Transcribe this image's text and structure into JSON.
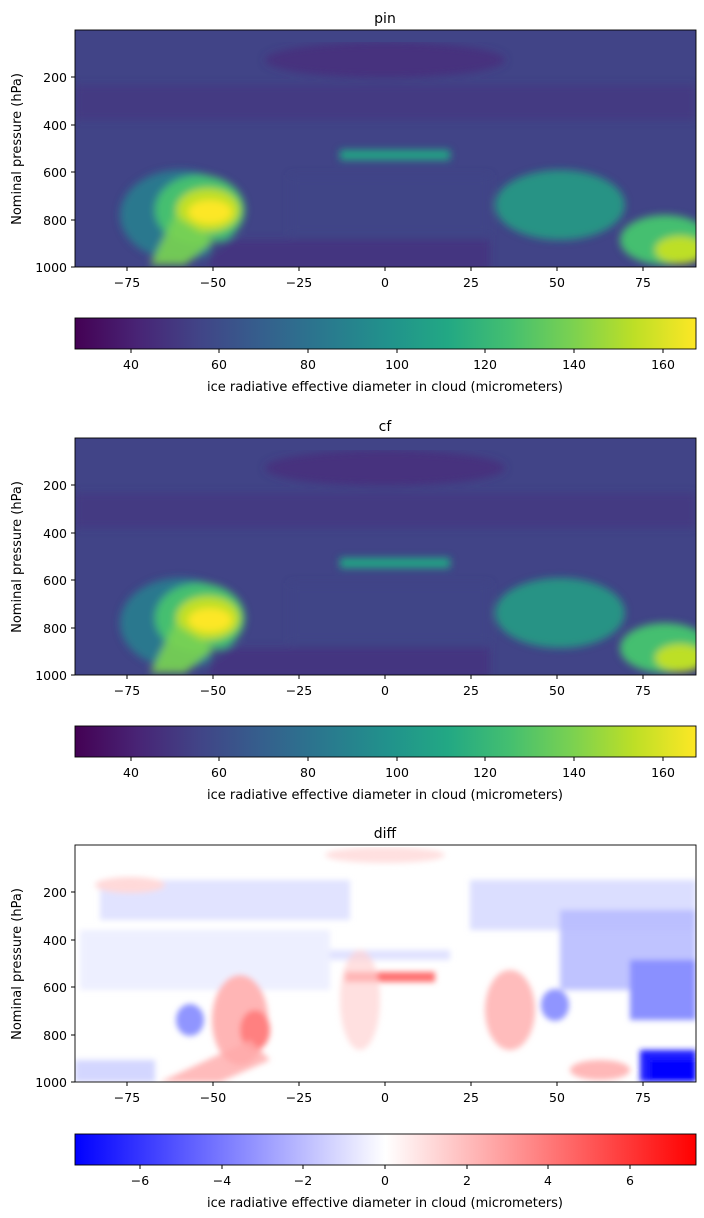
{
  "chart_data": [
    {
      "type": "heatmap",
      "title": "pin",
      "ylabel": "Nominal pressure (hPa)",
      "xlabel": "",
      "xlim": [
        -90,
        90
      ],
      "ylim": [
        1000,
        0
      ],
      "xticks": [
        -75,
        -50,
        -25,
        0,
        25,
        50,
        75
      ],
      "xtick_labels": [
        "−75",
        "−50",
        "−25",
        "0",
        "25",
        "50",
        "75"
      ],
      "yticks": [
        200,
        400,
        600,
        800,
        1000
      ],
      "ytick_labels": [
        "200",
        "400",
        "600",
        "800",
        "1000"
      ],
      "colormap": "viridis",
      "colorbar": {
        "label": "ice radiative effective diameter in cloud (micrometers)",
        "range": [
          27,
          167
        ],
        "ticks": [
          40,
          60,
          80,
          100,
          120,
          140,
          160
        ],
        "tick_labels": [
          "40",
          "60",
          "80",
          "100",
          "120",
          "140",
          "160"
        ],
        "orientation": "horizontal"
      },
      "grid": false
    },
    {
      "type": "heatmap",
      "title": "cf",
      "ylabel": "Nominal pressure (hPa)",
      "xlabel": "",
      "xlim": [
        -90,
        90
      ],
      "ylim": [
        1000,
        0
      ],
      "xticks": [
        -75,
        -50,
        -25,
        0,
        25,
        50,
        75
      ],
      "xtick_labels": [
        "−75",
        "−50",
        "−25",
        "0",
        "25",
        "50",
        "75"
      ],
      "yticks": [
        200,
        400,
        600,
        800,
        1000
      ],
      "ytick_labels": [
        "200",
        "400",
        "600",
        "800",
        "1000"
      ],
      "colormap": "viridis",
      "colorbar": {
        "label": "ice radiative effective diameter in cloud (micrometers)",
        "range": [
          27,
          167
        ],
        "ticks": [
          40,
          60,
          80,
          100,
          120,
          140,
          160
        ],
        "tick_labels": [
          "40",
          "60",
          "80",
          "100",
          "120",
          "140",
          "160"
        ],
        "orientation": "horizontal"
      },
      "grid": false
    },
    {
      "type": "heatmap",
      "title": "diff",
      "ylabel": "Nominal pressure (hPa)",
      "xlabel": "",
      "xlim": [
        -90,
        90
      ],
      "ylim": [
        1000,
        0
      ],
      "xticks": [
        -75,
        -50,
        -25,
        0,
        25,
        50,
        75
      ],
      "xtick_labels": [
        "−75",
        "−50",
        "−25",
        "0",
        "25",
        "50",
        "75"
      ],
      "yticks": [
        200,
        400,
        600,
        800,
        1000
      ],
      "ytick_labels": [
        "200",
        "400",
        "600",
        "800",
        "1000"
      ],
      "colormap": "bwr",
      "colorbar": {
        "label": "ice radiative effective diameter in cloud (micrometers)",
        "range": [
          -7.6,
          7.6
        ],
        "ticks": [
          -6,
          -4,
          -2,
          0,
          2,
          4,
          6
        ],
        "tick_labels": [
          "−6",
          "−4",
          "−2",
          "0",
          "2",
          "4",
          "6"
        ],
        "orientation": "horizontal"
      },
      "grid": false
    }
  ]
}
